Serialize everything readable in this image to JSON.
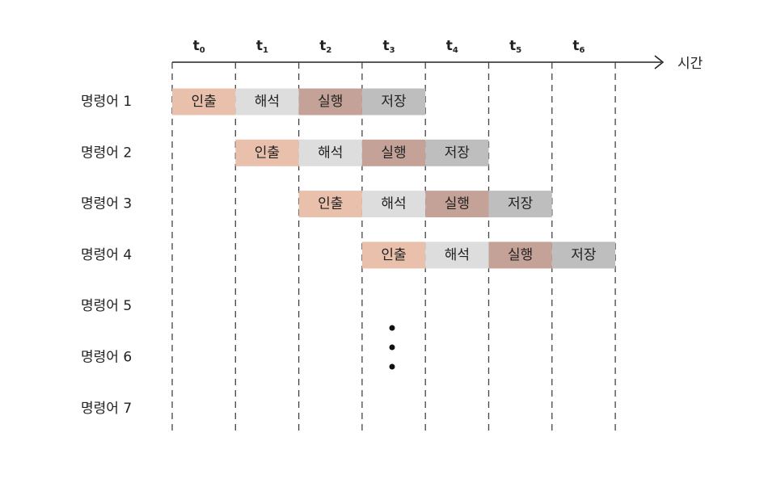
{
  "axis_label": "시간",
  "time_labels": [
    {
      "main": "t",
      "sub": "0"
    },
    {
      "main": "t",
      "sub": "1"
    },
    {
      "main": "t",
      "sub": "2"
    },
    {
      "main": "t",
      "sub": "3"
    },
    {
      "main": "t",
      "sub": "4"
    },
    {
      "main": "t",
      "sub": "5"
    },
    {
      "main": "t",
      "sub": "6"
    }
  ],
  "stages": [
    {
      "name": "인출",
      "color": "#e9c0ab"
    },
    {
      "name": "해석",
      "color": "#dddddd"
    },
    {
      "name": "실행",
      "color": "#c5a297"
    },
    {
      "name": "저장",
      "color": "#bebebe"
    }
  ],
  "rows": [
    {
      "label": "명령어 1",
      "start": 0
    },
    {
      "label": "명령어 2",
      "start": 1
    },
    {
      "label": "명령어 3",
      "start": 2
    },
    {
      "label": "명령어 4",
      "start": 3
    },
    {
      "label": "명령어 5",
      "start": null
    },
    {
      "label": "명령어 6",
      "start": null
    },
    {
      "label": "명령어 7",
      "start": null
    }
  ]
}
